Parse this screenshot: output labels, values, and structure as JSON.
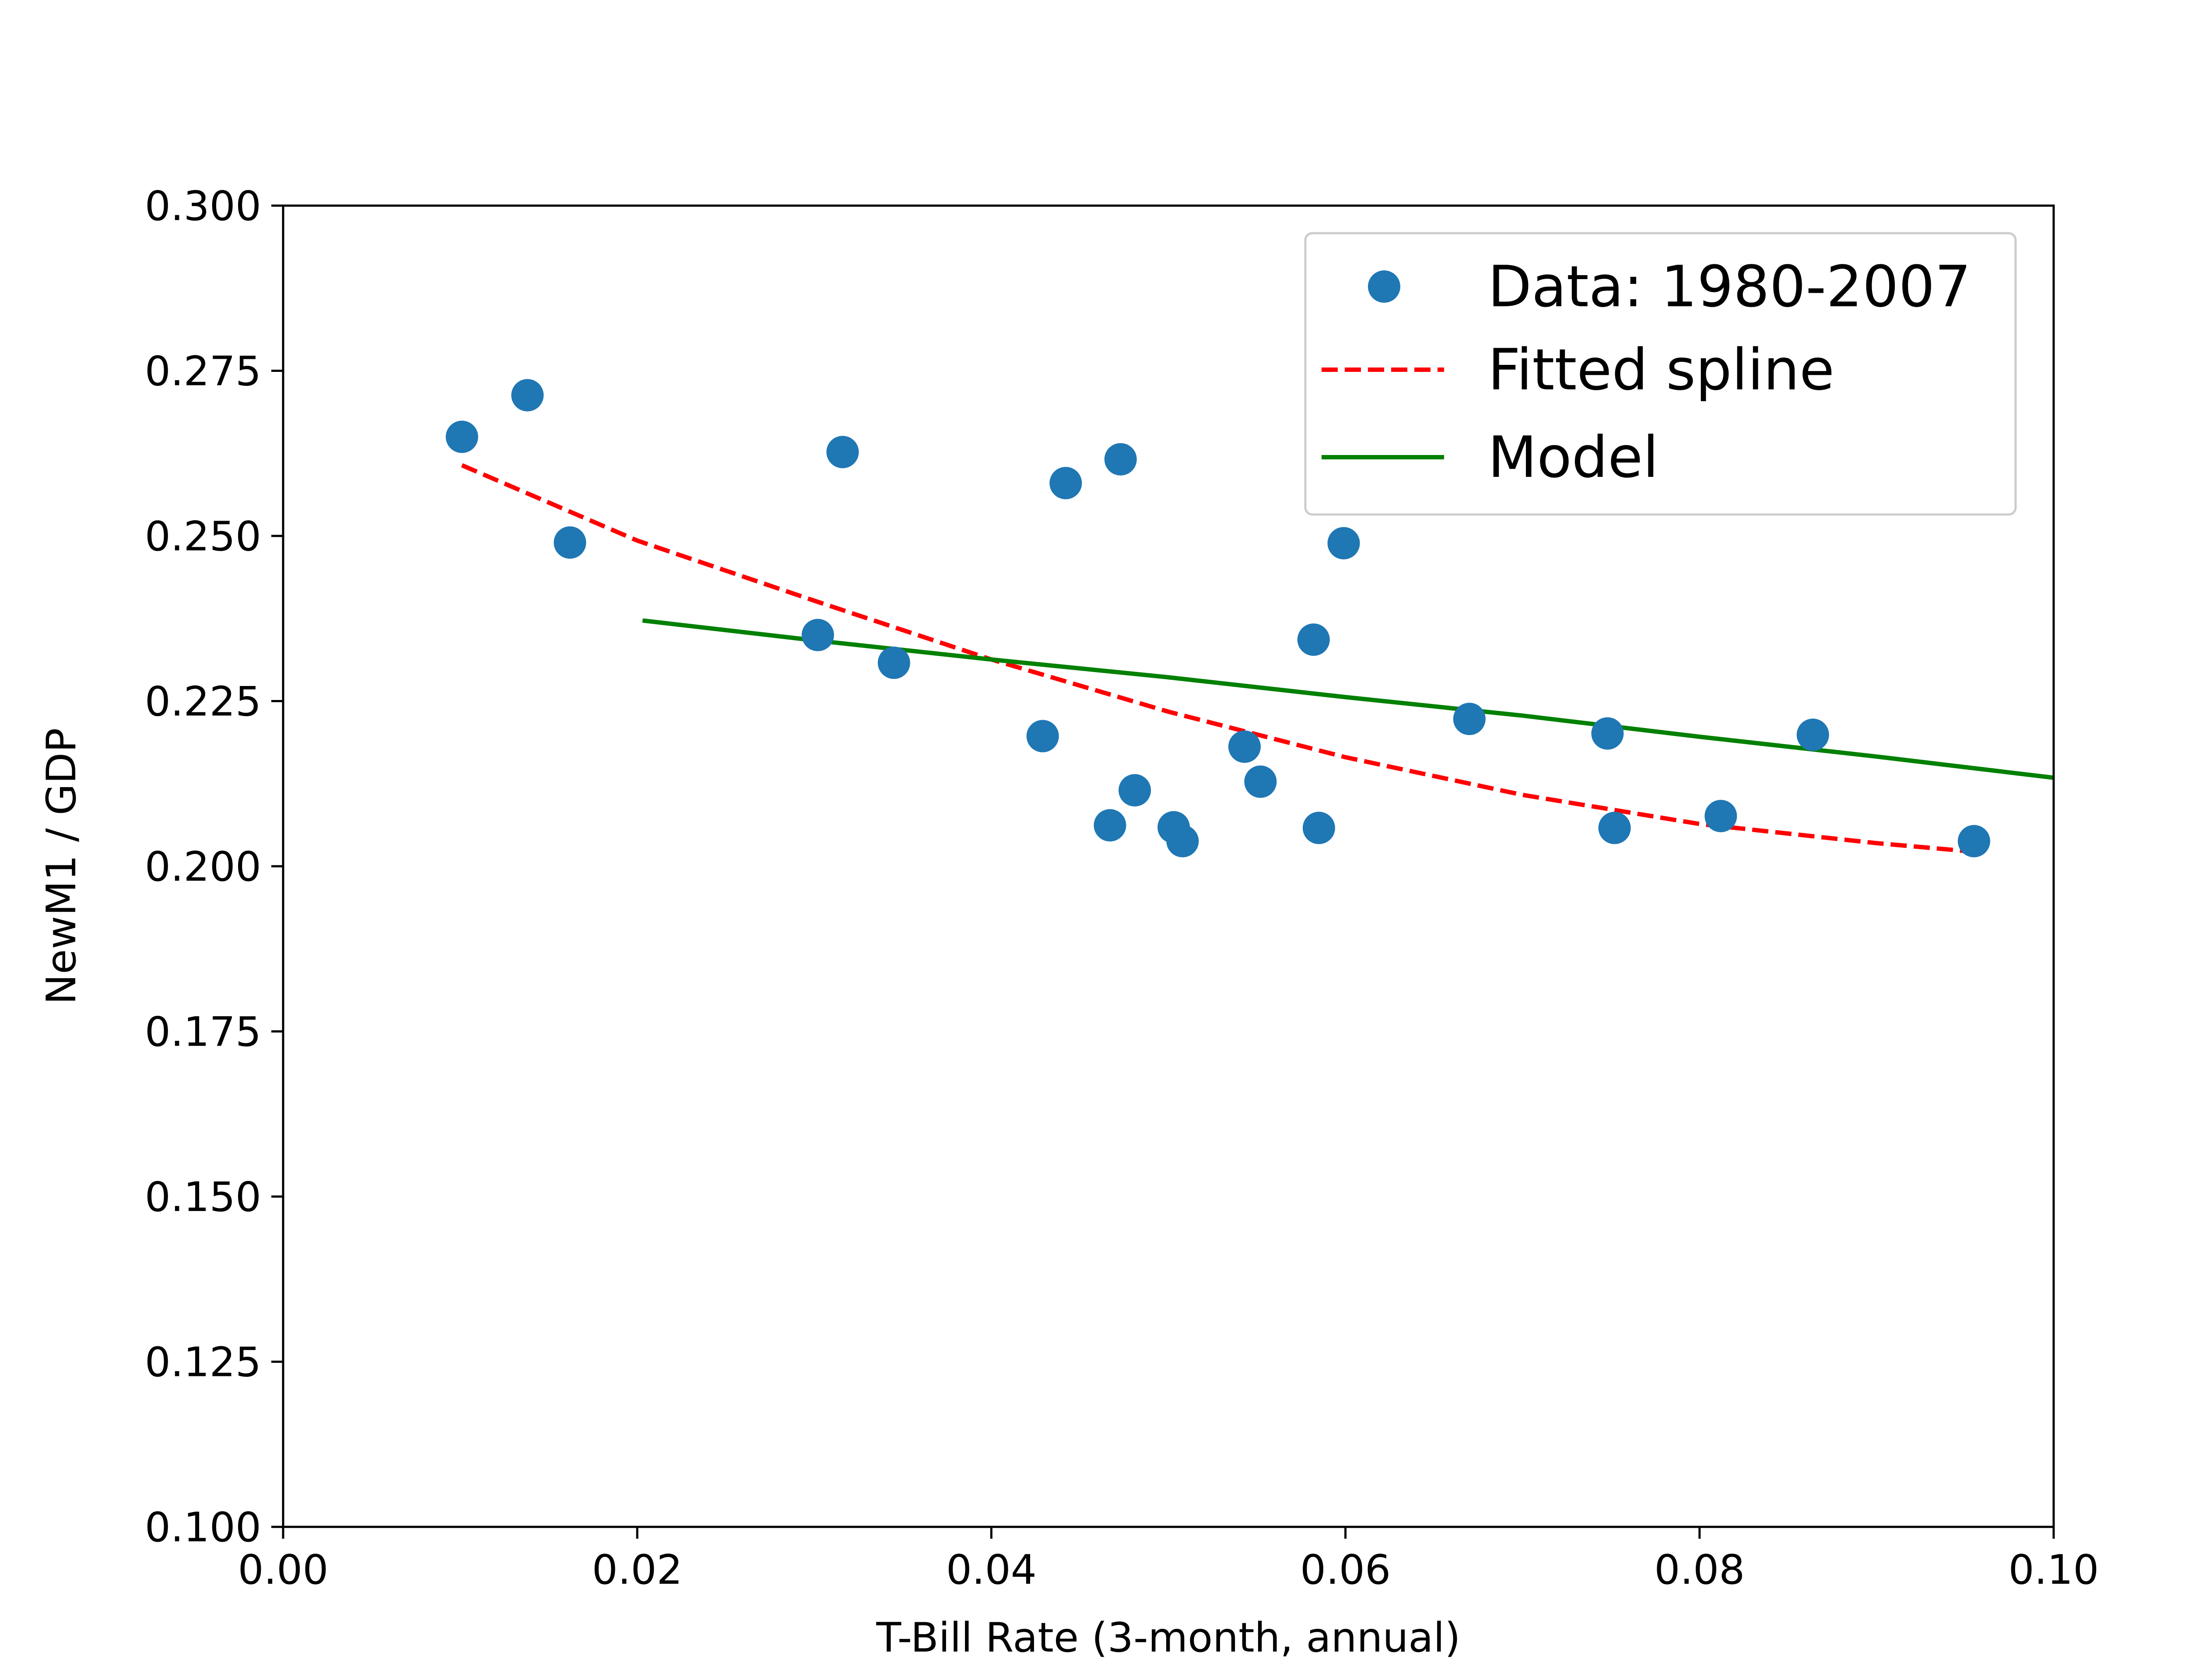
{
  "chart_data": {
    "type": "scatter",
    "title": "",
    "xlabel": "T-Bill Rate (3-month, annual)",
    "ylabel": "NewM1 / GDP",
    "xlim": [
      0.0,
      0.1
    ],
    "ylim": [
      0.1,
      0.3
    ],
    "grid": false,
    "legend_position": "top-right",
    "x_ticks": [
      "0.00",
      "0.02",
      "0.04",
      "0.06",
      "0.08",
      "0.10"
    ],
    "y_ticks": [
      "0.100",
      "0.125",
      "0.150",
      "0.175",
      "0.200",
      "0.225",
      "0.250",
      "0.275",
      "0.300"
    ],
    "x_tick_values": [
      0.0,
      0.02,
      0.04,
      0.06,
      0.08,
      0.1
    ],
    "y_tick_values": [
      0.1,
      0.125,
      0.15,
      0.175,
      0.2,
      0.225,
      0.25,
      0.275,
      0.3
    ],
    "series": [
      {
        "name": "Data: 1980-2007",
        "kind": "scatter",
        "color": "#1f77b4",
        "x": [
          0.0101,
          0.0138,
          0.0162,
          0.0302,
          0.0316,
          0.0345,
          0.0429,
          0.0442,
          0.0467,
          0.0473,
          0.0481,
          0.0503,
          0.0508,
          0.0543,
          0.0552,
          0.0582,
          0.0585,
          0.0599,
          0.067,
          0.0748,
          0.0752,
          0.0812,
          0.0864,
          0.0955
        ],
        "y": [
          0.265,
          0.2713,
          0.249,
          0.235,
          0.2627,
          0.2308,
          0.2197,
          0.258,
          0.2062,
          0.2616,
          0.2115,
          0.2059,
          0.2038,
          0.2181,
          0.2128,
          0.2343,
          0.2058,
          0.2489,
          0.2223,
          0.2201,
          0.2058,
          0.2076,
          0.2199,
          0.2038
        ]
      },
      {
        "name": "Fitted spline",
        "kind": "line",
        "style": "dashed",
        "color": "#ff0000",
        "x": [
          0.0101,
          0.02,
          0.03,
          0.04,
          0.05,
          0.06,
          0.07,
          0.08,
          0.09,
          0.0955
        ],
        "y": [
          0.2607,
          0.2493,
          0.2402,
          0.2313,
          0.2234,
          0.2165,
          0.2108,
          0.2064,
          0.2035,
          0.2022
        ]
      },
      {
        "name": "Model",
        "kind": "line",
        "style": "solid",
        "color": "#008000",
        "x": [
          0.0203,
          0.03,
          0.04,
          0.05,
          0.06,
          0.07,
          0.08,
          0.09,
          0.1
        ],
        "y": [
          0.2372,
          0.2342,
          0.2313,
          0.2286,
          0.2256,
          0.2228,
          0.2196,
          0.2166,
          0.2134
        ]
      }
    ]
  }
}
